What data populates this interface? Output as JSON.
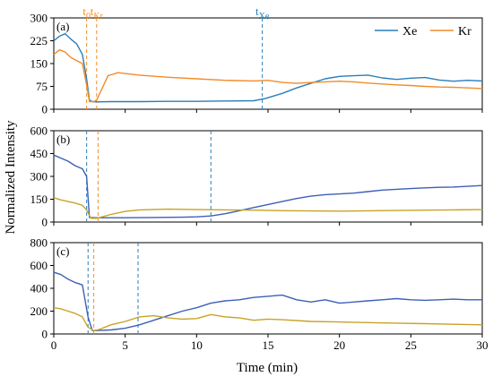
{
  "chart_data": {
    "type": "line",
    "xlabel": "Time (min)",
    "ylabel": "Normalized Intensity",
    "xlim": [
      0,
      30
    ],
    "xticks": [
      "0",
      "5",
      "10",
      "15",
      "20",
      "25",
      "30"
    ],
    "legend": {
      "placement": "top-right",
      "entries": [
        "Xe",
        "Kr"
      ]
    },
    "colors": {
      "Xe": "#2a7eb8",
      "Kr": "#f28c28",
      "Xe_bc": "#3d5fb8",
      "Kr_bc": "#c9a227"
    },
    "panels": [
      {
        "label": "(a)",
        "ylim": [
          0,
          300
        ],
        "yticks": [
          "0",
          "75",
          "150",
          "225",
          "300"
        ],
        "markers": [
          {
            "x": 2.3,
            "color": "#f28c28",
            "text": "t",
            "sub": "0"
          },
          {
            "x": 3.0,
            "color": "#f28c28",
            "text": "t",
            "sub": "Kr"
          },
          {
            "x": 14.6,
            "color": "#2a7eb8",
            "text": "t",
            "sub": "Xe"
          }
        ],
        "series": [
          {
            "name": "Xe",
            "color": "#2a7eb8",
            "x": [
              0,
              0.4,
              0.8,
              1.2,
              1.6,
              2.0,
              2.3,
              2.5,
              2.7,
              3.0,
              4,
              6,
              8,
              10,
              12,
              14,
              14.8,
              16,
              17,
              18,
              19,
              20,
              21,
              22,
              23,
              24,
              25,
              26,
              27,
              28,
              29,
              30
            ],
            "y": [
              225,
              240,
              248,
              230,
              215,
              180,
              100,
              30,
              25,
              24,
              25,
              25,
              26,
              26,
              27,
              28,
              35,
              52,
              70,
              85,
              100,
              108,
              110,
              112,
              103,
              98,
              102,
              104,
              96,
              92,
              95,
              93
            ]
          },
          {
            "name": "Kr",
            "color": "#f28c28",
            "x": [
              0,
              0.4,
              0.8,
              1.2,
              1.6,
              2.0,
              2.3,
              2.5,
              2.8,
              3.0,
              3.4,
              3.8,
              4.5,
              6,
              8,
              10,
              12,
              14,
              15,
              16,
              17,
              18,
              19,
              20,
              21,
              22,
              23,
              24,
              25,
              26,
              27,
              28,
              29,
              30
            ],
            "y": [
              180,
              195,
              188,
              170,
              160,
              150,
              80,
              25,
              25,
              30,
              70,
              110,
              120,
              112,
              105,
              100,
              95,
              93,
              95,
              88,
              85,
              88,
              90,
              92,
              90,
              86,
              83,
              80,
              78,
              75,
              73,
              72,
              70,
              68
            ]
          }
        ]
      },
      {
        "label": "(b)",
        "ylim": [
          0,
          600
        ],
        "yticks": [
          "0",
          "150",
          "300",
          "450",
          "600"
        ],
        "markers": [
          {
            "x": 2.3,
            "color": "#2a7eb8",
            "text": "",
            "sub": ""
          },
          {
            "x": 3.1,
            "color": "#f28c28",
            "text": "",
            "sub": ""
          },
          {
            "x": 11.0,
            "color": "#2a7eb8",
            "text": "",
            "sub": ""
          }
        ],
        "series": [
          {
            "name": "Xe",
            "color": "#3d5fb8",
            "x": [
              0,
              0.5,
              1.0,
              1.5,
              2.0,
              2.3,
              2.5,
              3,
              5,
              7,
              9,
              10,
              11,
              12,
              13,
              14,
              15,
              16,
              17,
              18,
              19,
              20,
              21,
              22,
              23,
              24,
              25,
              26,
              27,
              28,
              29,
              30
            ],
            "y": [
              440,
              420,
              400,
              370,
              350,
              300,
              30,
              28,
              28,
              30,
              32,
              34,
              40,
              55,
              75,
              95,
              115,
              135,
              155,
              170,
              180,
              185,
              190,
              200,
              210,
              215,
              220,
              225,
              228,
              230,
              235,
              240
            ]
          },
          {
            "name": "Kr",
            "color": "#c9a227",
            "x": [
              0,
              0.5,
              1.0,
              1.5,
              2.0,
              2.3,
              2.6,
              3.0,
              4,
              5,
              6,
              8,
              10,
              12,
              14,
              16,
              18,
              20,
              22,
              24,
              26,
              28,
              30
            ],
            "y": [
              160,
              145,
              135,
              125,
              110,
              80,
              25,
              25,
              50,
              70,
              80,
              85,
              82,
              80,
              78,
              75,
              73,
              72,
              74,
              76,
              78,
              80,
              82
            ]
          }
        ]
      },
      {
        "label": "(c)",
        "ylim": [
          0,
          800
        ],
        "yticks": [
          "0",
          "200",
          "400",
          "600",
          "800"
        ],
        "markers": [
          {
            "x": 2.4,
            "color": "#2a7eb8",
            "text": "",
            "sub": ""
          },
          {
            "x": 2.8,
            "color": "#f28c28",
            "text": "",
            "sub": ""
          },
          {
            "x": 5.9,
            "color": "#2a7eb8",
            "text": "",
            "sub": ""
          }
        ],
        "series": [
          {
            "name": "Xe",
            "color": "#3d5fb8",
            "x": [
              0,
              0.5,
              1.0,
              1.5,
              2.0,
              2.4,
              2.7,
              3,
              4,
              5,
              6,
              7,
              8,
              9,
              10,
              11,
              12,
              13,
              14,
              15,
              16,
              17,
              18,
              19,
              20,
              21,
              22,
              23,
              24,
              25,
              26,
              27,
              28,
              29,
              30
            ],
            "y": [
              540,
              520,
              480,
              450,
              430,
              150,
              30,
              30,
              35,
              50,
              80,
              120,
              160,
              200,
              230,
              270,
              290,
              300,
              320,
              330,
              340,
              300,
              280,
              300,
              270,
              280,
              290,
              300,
              310,
              300,
              295,
              300,
              305,
              300,
              300
            ]
          },
          {
            "name": "Kr",
            "color": "#c9a227",
            "x": [
              0,
              0.5,
              1.0,
              1.5,
              2.0,
              2.4,
              2.8,
              3.2,
              4,
              5,
              6,
              7,
              8,
              9,
              10,
              11,
              12,
              13,
              14,
              15,
              16,
              18,
              20,
              22,
              24,
              26,
              28,
              30
            ],
            "y": [
              230,
              220,
              200,
              180,
              150,
              60,
              30,
              40,
              80,
              110,
              150,
              160,
              140,
              130,
              135,
              170,
              150,
              140,
              120,
              130,
              125,
              110,
              105,
              100,
              95,
              90,
              85,
              80
            ]
          }
        ]
      }
    ]
  }
}
